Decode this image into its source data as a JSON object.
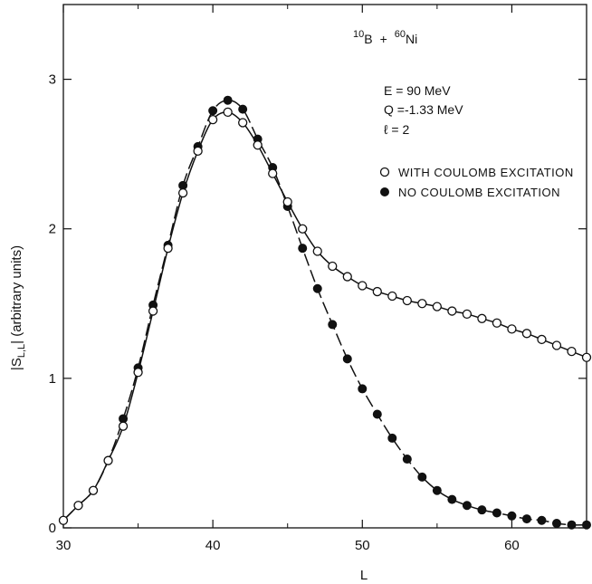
{
  "chart_data": {
    "type": "line",
    "xlabel": "L",
    "ylabel_main": "|S",
    "ylabel_sub": "L,L",
    "ylabel_tail": "| (arbitrary units)",
    "xlim": [
      30,
      65
    ],
    "ylim": [
      0,
      3.5
    ],
    "x_ticks": [
      30,
      40,
      50,
      60
    ],
    "y_ticks": [
      0,
      1,
      2,
      3
    ],
    "grid": false,
    "reaction": {
      "a_mass": "10",
      "a_sym": "B",
      "plus": "+",
      "b_mass": "60",
      "b_sym": "Ni"
    },
    "annotations": [
      "E  = 90 MeV",
      "Q =-1.33 MeV",
      "ℓ = 2"
    ],
    "series": [
      {
        "name": "WITH COULOMB EXCITATION",
        "marker": "open-circle",
        "line": "solid",
        "x": [
          30,
          31,
          32,
          33,
          34,
          35,
          36,
          37,
          38,
          39,
          40,
          41,
          42,
          43,
          44,
          45,
          46,
          47,
          48,
          49,
          50,
          51,
          52,
          53,
          54,
          55,
          56,
          57,
          58,
          59,
          60,
          61,
          62,
          63,
          64,
          65
        ],
        "values": [
          0.05,
          0.15,
          0.25,
          0.45,
          0.68,
          1.04,
          1.45,
          1.87,
          2.24,
          2.52,
          2.73,
          2.78,
          2.71,
          2.56,
          2.37,
          2.18,
          2.0,
          1.85,
          1.75,
          1.68,
          1.62,
          1.58,
          1.55,
          1.52,
          1.5,
          1.48,
          1.45,
          1.43,
          1.4,
          1.37,
          1.33,
          1.3,
          1.26,
          1.22,
          1.18,
          1.14
        ]
      },
      {
        "name": "NO COULOMB EXCITATION",
        "marker": "filled-circle",
        "line": "dashed",
        "x": [
          30,
          31,
          32,
          33,
          34,
          35,
          36,
          37,
          38,
          39,
          40,
          41,
          42,
          43,
          44,
          45,
          46,
          47,
          48,
          49,
          50,
          51,
          52,
          53,
          54,
          55,
          56,
          57,
          58,
          59,
          60,
          61,
          62,
          63,
          64,
          65
        ],
        "values": [
          0.05,
          0.15,
          0.25,
          0.45,
          0.73,
          1.07,
          1.49,
          1.89,
          2.29,
          2.55,
          2.79,
          2.86,
          2.8,
          2.6,
          2.41,
          2.15,
          1.87,
          1.6,
          1.36,
          1.13,
          0.93,
          0.76,
          0.6,
          0.46,
          0.34,
          0.25,
          0.19,
          0.15,
          0.12,
          0.1,
          0.08,
          0.06,
          0.05,
          0.03,
          0.02,
          0.02
        ]
      }
    ]
  }
}
